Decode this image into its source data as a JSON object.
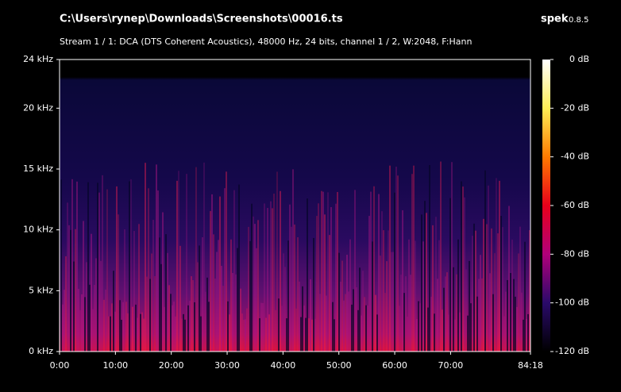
{
  "chart_data": {
    "type": "spectrogram",
    "title": "C:\\Users\\rynep\\Downloads\\Screenshots\\00016.ts",
    "app_name": "spek",
    "app_version": "0.8.5",
    "subtitle": "Stream 1 / 1: DCA (DTS Coherent Acoustics), 48000 Hz, 24 bits, channel 1 / 2, W:2048, F:Hann",
    "xlim": [
      0,
      84.3
    ],
    "xticks": [
      {
        "value": 0,
        "label": "0:00"
      },
      {
        "value": 10,
        "label": "10:00"
      },
      {
        "value": 20,
        "label": "20:00"
      },
      {
        "value": 30,
        "label": "30:00"
      },
      {
        "value": 40,
        "label": "40:00"
      },
      {
        "value": 50,
        "label": "50:00"
      },
      {
        "value": 60,
        "label": "60:00"
      },
      {
        "value": 70,
        "label": "70:00"
      },
      {
        "value": 84.3,
        "label": "84:18"
      }
    ],
    "ylim": [
      0,
      24
    ],
    "yticks": [
      {
        "value": 0,
        "label": "0 kHz"
      },
      {
        "value": 5,
        "label": "5 kHz"
      },
      {
        "value": 10,
        "label": "10 kHz"
      },
      {
        "value": 15,
        "label": "15 kHz"
      },
      {
        "value": 20,
        "label": "20 kHz"
      },
      {
        "value": 24,
        "label": "24 kHz"
      }
    ],
    "colorbar": {
      "lim": [
        -120,
        0
      ],
      "ticks": [
        {
          "value": 0,
          "label": "0 dB"
        },
        {
          "value": -20,
          "label": "-20 dB"
        },
        {
          "value": -40,
          "label": "-40 dB"
        },
        {
          "value": -60,
          "label": "-60 dB"
        },
        {
          "value": -80,
          "label": "-80 dB"
        },
        {
          "value": -100,
          "label": "-100 dB"
        },
        {
          "value": -120,
          "label": "-120 dB"
        }
      ],
      "colors": [
        "#ffffff",
        "#ffee55",
        "#ff7a00",
        "#e8001a",
        "#b0007a",
        "#2a0a6a",
        "#000000"
      ]
    }
  }
}
